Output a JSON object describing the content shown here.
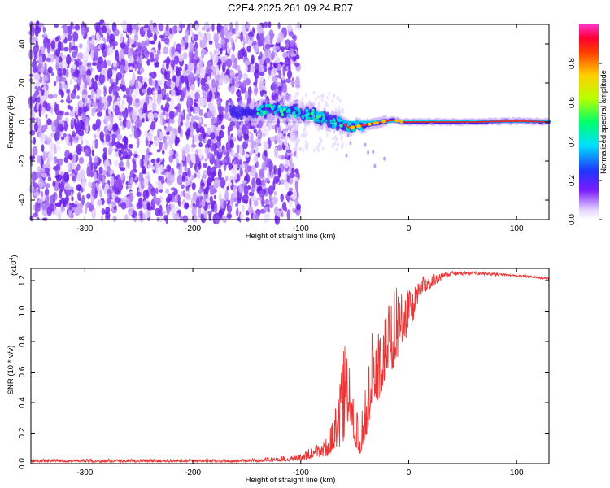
{
  "title": "C2E4.2025.261.09.24.R07",
  "chart_data": [
    {
      "type": "heatmap",
      "name": "spectrogram",
      "xlabel": "Height of straight line (km)",
      "ylabel": "Frequency (Hz)",
      "xlim": [
        -350,
        130
      ],
      "ylim": [
        -50,
        50
      ],
      "xticks": [
        -300,
        -200,
        -100,
        0,
        100
      ],
      "yticks": [
        -40,
        -20,
        0,
        20,
        40
      ],
      "noise_region_km": [
        -350,
        -110
      ],
      "signal_onset_km": -165,
      "signal_track": {
        "x": [
          -165,
          -140,
          -120,
          -100,
          -90,
          -80,
          -70,
          -60,
          -55,
          -45,
          -35,
          -25,
          -15,
          -5,
          20,
          60,
          100,
          130
        ],
        "y": [
          5,
          6,
          6,
          5,
          4,
          2,
          0,
          -1,
          -3,
          -2,
          -1,
          0,
          1,
          0,
          0,
          0,
          0.5,
          0
        ]
      },
      "colorbar": {
        "label": "Normalized spectral amplitude",
        "ticks": [
          0.0,
          0.2,
          0.4,
          0.6,
          0.8
        ],
        "range": [
          0,
          1
        ]
      }
    },
    {
      "type": "line",
      "name": "snr",
      "xlabel": "Height of straight line (km)",
      "ylabel": "SNR (10 * v/v)",
      "y_scale_label": "(x10",
      "y_scale_exponent": "4",
      "xlim": [
        -350,
        130
      ],
      "ylim": [
        0,
        1.28
      ],
      "xticks": [
        -300,
        -200,
        -100,
        0,
        100
      ],
      "yticks": [
        0.0,
        0.2,
        0.4,
        0.6,
        0.8,
        1.0,
        1.2
      ],
      "color": "#ee3333",
      "envelope": {
        "x": [
          -350,
          -150,
          -100,
          -75,
          -70,
          -65,
          -60,
          -55,
          -50,
          -45,
          -40,
          -35,
          -30,
          -25,
          -20,
          -15,
          -10,
          -5,
          0,
          5,
          10,
          20,
          30,
          40,
          60,
          100,
          130
        ],
        "base": [
          0.01,
          0.01,
          0.02,
          0.05,
          0.08,
          0.1,
          0.15,
          0.3,
          0.12,
          0.06,
          0.15,
          0.3,
          0.4,
          0.45,
          0.6,
          0.62,
          0.7,
          0.8,
          0.85,
          0.95,
          1.1,
          1.15,
          1.2,
          1.22,
          1.23,
          1.22,
          1.2
        ],
        "peak": [
          0.03,
          0.03,
          0.06,
          0.18,
          0.3,
          0.45,
          0.83,
          0.65,
          0.4,
          0.25,
          0.55,
          0.85,
          0.88,
          0.92,
          1.08,
          1.15,
          1.18,
          1.16,
          1.22,
          1.2,
          1.23,
          1.24,
          1.25,
          1.26,
          1.26,
          1.24,
          1.22
        ]
      }
    }
  ]
}
